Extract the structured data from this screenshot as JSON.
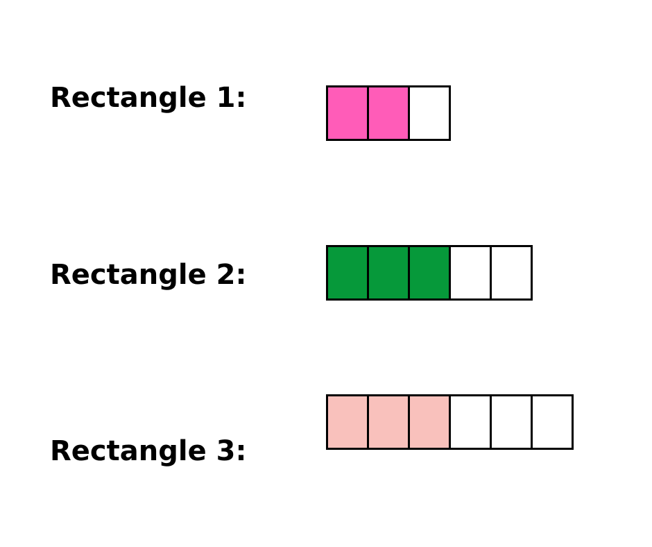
{
  "rows": [
    {
      "label": "Rectangle 1:",
      "total_parts": 3,
      "shaded_parts": 2,
      "fill_color": "#FF5CB8"
    },
    {
      "label": "Rectangle 2:",
      "total_parts": 5,
      "shaded_parts": 3,
      "fill_color": "#06993A"
    },
    {
      "label": "Rectangle 3:",
      "total_parts": 6,
      "shaded_parts": 3,
      "fill_color": "#F9C1BC"
    }
  ]
}
